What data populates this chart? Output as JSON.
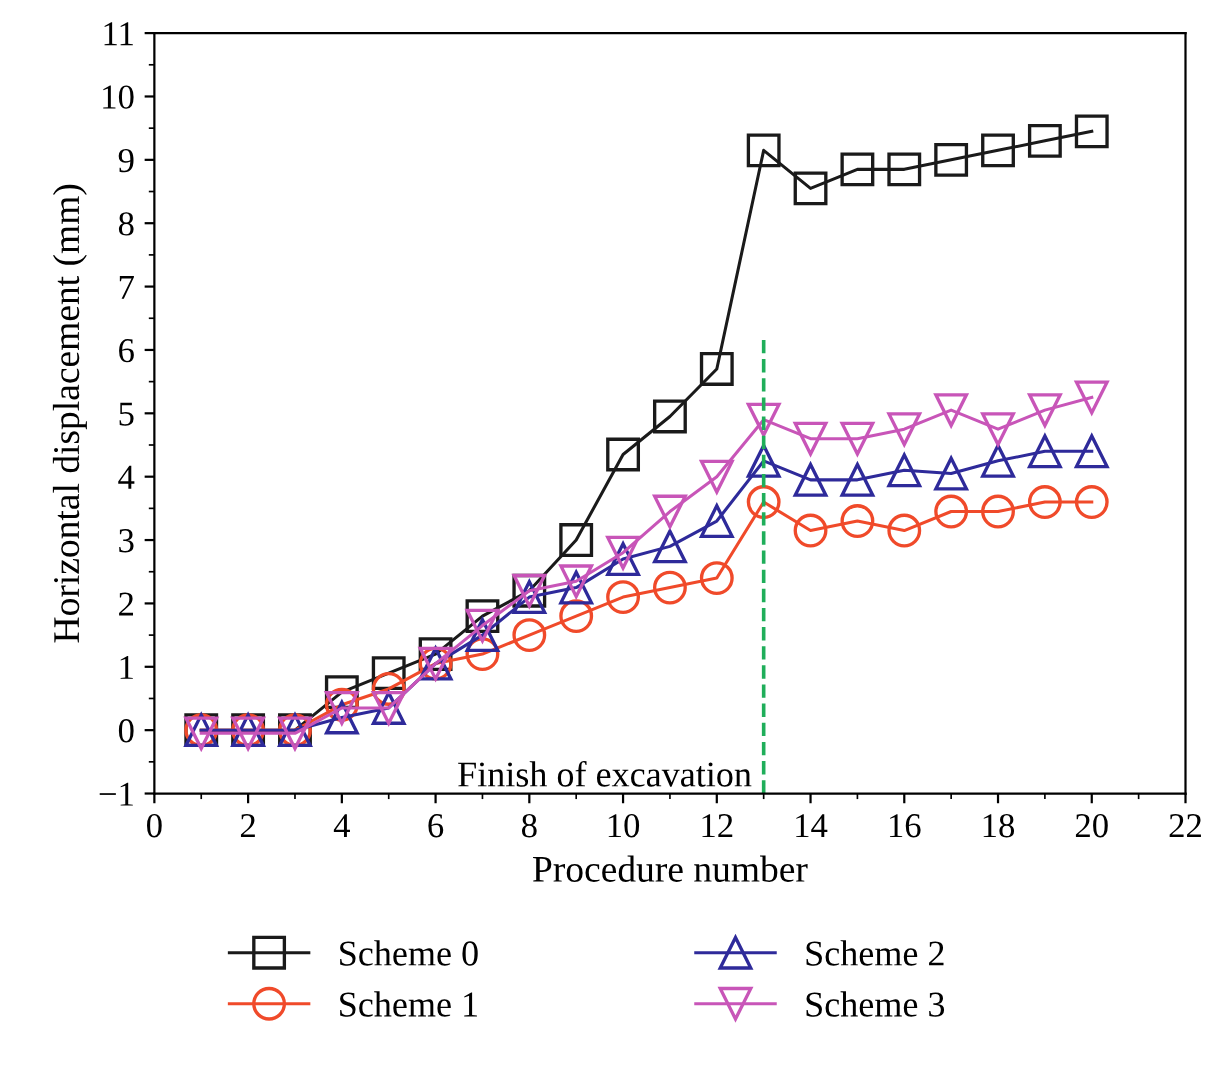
{
  "chart_data": {
    "type": "line",
    "xlabel": "Procedure number",
    "ylabel": "Horizontal displacement (mm)",
    "x": [
      1,
      2,
      3,
      4,
      5,
      6,
      7,
      8,
      9,
      10,
      11,
      12,
      13,
      14,
      15,
      16,
      17,
      18,
      19,
      20
    ],
    "series": [
      {
        "name": "Scheme 0",
        "color": "#1a1a1a",
        "marker": "square",
        "values": [
          0,
          0,
          0,
          0.6,
          0.9,
          1.2,
          1.8,
          2.2,
          3.0,
          4.35,
          4.95,
          5.7,
          9.15,
          8.55,
          8.85,
          8.85,
          9.0,
          9.15,
          9.3,
          9.45
        ]
      },
      {
        "name": "Scheme 1",
        "color": "#f04a2a",
        "marker": "circle",
        "values": [
          0,
          0,
          0,
          0.4,
          0.65,
          1.05,
          1.2,
          1.5,
          1.8,
          2.1,
          2.25,
          2.4,
          3.6,
          3.15,
          3.3,
          3.15,
          3.45,
          3.45,
          3.6,
          3.6
        ]
      },
      {
        "name": "Scheme 2",
        "color": "#2e2a9a",
        "marker": "triangle",
        "values": [
          0,
          0,
          0,
          0.2,
          0.35,
          1.05,
          1.5,
          2.1,
          2.25,
          2.7,
          2.9,
          3.3,
          4.25,
          3.95,
          3.95,
          4.1,
          4.05,
          4.25,
          4.4,
          4.4
        ]
      },
      {
        "name": "Scheme 3",
        "color": "#c855b8",
        "marker": "triangle_down",
        "values": [
          -0.05,
          -0.05,
          -0.05,
          0.35,
          0.35,
          1.05,
          1.65,
          2.2,
          2.35,
          2.8,
          3.45,
          4.0,
          4.9,
          4.6,
          4.6,
          4.75,
          5.05,
          4.75,
          5.05,
          5.25
        ]
      }
    ],
    "xlim": [
      0,
      22
    ],
    "xticks": [
      0,
      2,
      4,
      6,
      8,
      10,
      12,
      14,
      16,
      18,
      20,
      22
    ],
    "ylim": [
      -1,
      11
    ],
    "yticks": [
      -1,
      0,
      1,
      2,
      3,
      4,
      5,
      6,
      7,
      8,
      9,
      10,
      11
    ],
    "ref_lines": [
      {
        "axis": "x",
        "value": 13,
        "label": "Finish of excavation",
        "color": "#1fae5a",
        "line_style": "dashed"
      }
    ],
    "legend": "bottom",
    "grid": false,
    "line_style": "solid"
  }
}
